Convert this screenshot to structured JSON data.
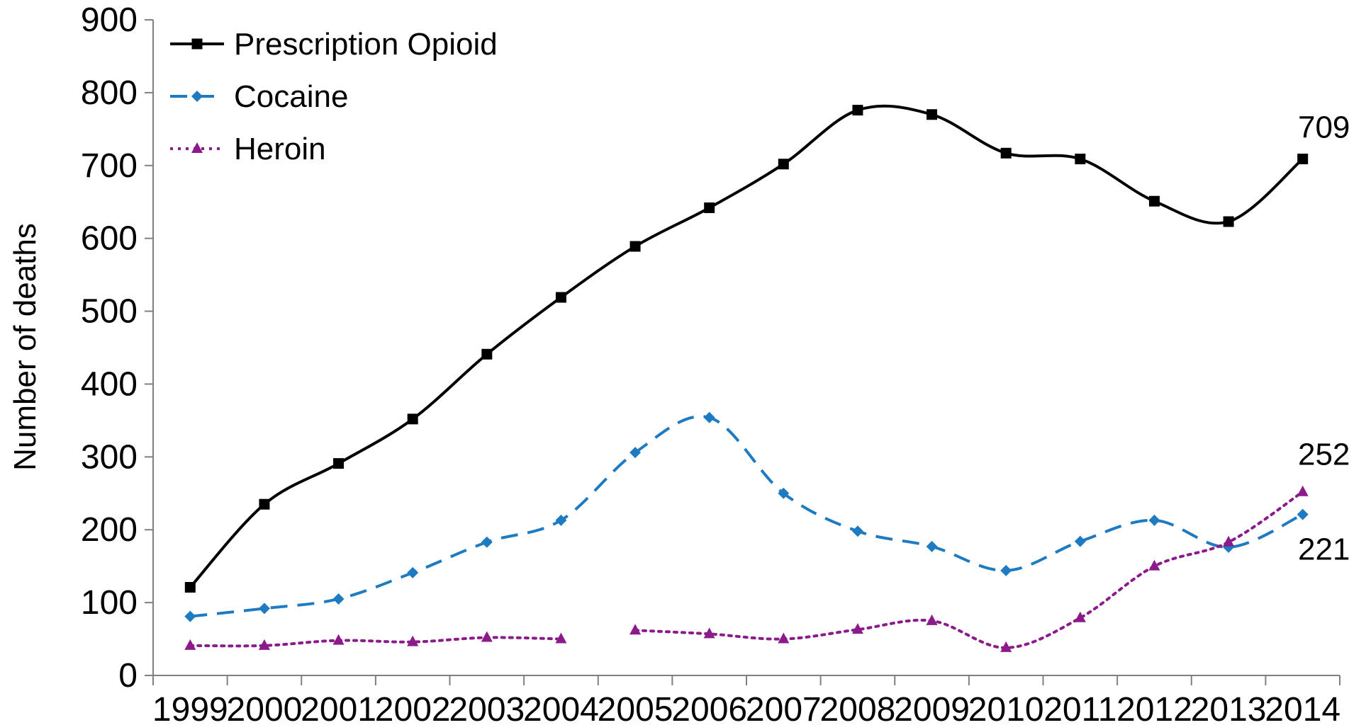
{
  "chart_data": {
    "type": "line",
    "title": "",
    "xlabel": "",
    "ylabel": "Number of deaths",
    "categories": [
      "1999",
      "2000",
      "2001",
      "2002",
      "2003",
      "2004",
      "2005",
      "2006",
      "2007",
      "2008",
      "2009",
      "2010",
      "2011",
      "2012",
      "2013",
      "2014"
    ],
    "ylim": [
      0,
      900
    ],
    "yticks": [
      0,
      100,
      200,
      300,
      400,
      500,
      600,
      700,
      800,
      900
    ],
    "grid": false,
    "legend_position": "top-left",
    "series": [
      {
        "name": "Prescription Opioid",
        "color": "#000000",
        "marker": "square",
        "line_style": "solid",
        "values": [
          121,
          235,
          291,
          352,
          441,
          519,
          589,
          642,
          702,
          776,
          770,
          717,
          709,
          651,
          623,
          709
        ],
        "end_label": "709"
      },
      {
        "name": "Cocaine",
        "color": "#1f7bc1",
        "marker": "diamond",
        "line_style": "dashed",
        "values": [
          81,
          92,
          105,
          141,
          183,
          213,
          306,
          354,
          250,
          198,
          177,
          144,
          184,
          213,
          176,
          221
        ],
        "end_label": "221"
      },
      {
        "name": "Heroin",
        "color": "#8b1a8b",
        "marker": "triangle",
        "line_style": "dotted",
        "values": [
          41,
          41,
          48,
          46,
          52,
          50,
          62,
          57,
          50,
          63,
          75,
          38,
          79,
          150,
          183,
          252
        ],
        "end_label": "252"
      }
    ]
  }
}
